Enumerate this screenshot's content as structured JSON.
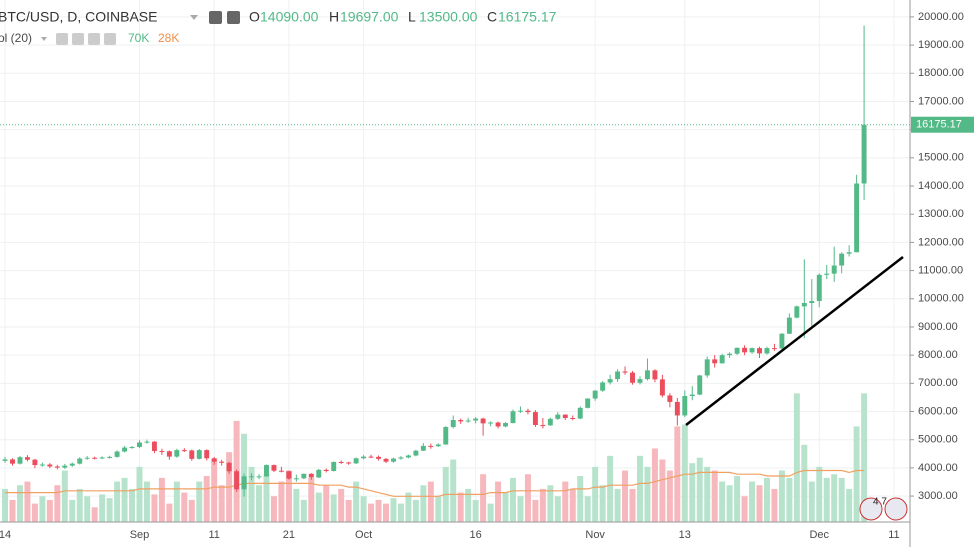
{
  "header": {
    "title": "BTC/USD, D, COINBASE",
    "ohlc": [
      {
        "key": "O",
        "value": "14090.00"
      },
      {
        "key": "H",
        "value": "19697.00"
      },
      {
        "key": "L",
        "value": "13500.00"
      },
      {
        "key": "C",
        "value": "16175.17"
      }
    ],
    "volume_label": "ol (20)",
    "volume_value": "70K",
    "volume_ma_value": "28K",
    "badge": "4 7"
  },
  "chart_data": {
    "type": "candlestick",
    "categories": [
      "14",
      null,
      null,
      null,
      null,
      null,
      null,
      null,
      null,
      null,
      null,
      null,
      null,
      null,
      null,
      null,
      null,
      null,
      "Sep",
      null,
      null,
      null,
      null,
      null,
      null,
      null,
      null,
      null,
      "11",
      null,
      null,
      null,
      null,
      null,
      null,
      null,
      null,
      null,
      "21",
      null,
      null,
      null,
      null,
      null,
      null,
      null,
      null,
      null,
      "Oct",
      null,
      null,
      null,
      null,
      null,
      null,
      null,
      null,
      null,
      null,
      null,
      null,
      null,
      null,
      "16",
      null,
      null,
      null,
      null,
      null,
      null,
      null,
      null,
      null,
      null,
      null,
      null,
      null,
      null,
      null,
      "Nov",
      null,
      null,
      null,
      null,
      null,
      null,
      null,
      null,
      null,
      null,
      null,
      "13",
      null,
      null,
      null,
      null,
      null,
      null,
      null,
      null,
      null,
      null,
      null,
      null,
      null,
      null,
      null,
      null,
      null,
      "Dec",
      null,
      null,
      null,
      null,
      null,
      null,
      null,
      null,
      null,
      "11"
    ],
    "open": [
      4250,
      4300,
      4150,
      4380,
      4290,
      4100,
      4120,
      4050,
      4010,
      4080,
      4150,
      4330,
      4360,
      4340,
      4370,
      4390,
      4580,
      4720,
      4740,
      4900,
      4930,
      4600,
      4590,
      4400,
      4630,
      4620,
      4320,
      4630,
      4340,
      4220,
      4180,
      3880,
      3240,
      3700,
      3700,
      3700,
      4100,
      3900,
      3880,
      3620,
      3630,
      3790,
      3660,
      3930,
      3890,
      4210,
      4190,
      4160,
      4340,
      4400,
      4390,
      4320,
      4220,
      4330,
      4370,
      4440,
      4610,
      4780,
      4770,
      4830,
      5450,
      5700,
      5650,
      5680,
      5750,
      5580,
      5610,
      5470,
      5590,
      6010,
      6030,
      5980,
      5520,
      5510,
      5740,
      5890,
      5770,
      5750,
      6130,
      6460,
      6740,
      7030,
      7150,
      7420,
      7380,
      7020,
      7150,
      7460,
      7140,
      6570,
      6340,
      5860,
      6550,
      6600,
      7280,
      7850,
      7710,
      8000,
      8050,
      8260,
      8100,
      8250,
      8060,
      8250,
      8240,
      8760,
      9330,
      9730,
      9850,
      9920,
      10850,
      10890,
      11180,
      11600,
      11650,
      14090,
      null,
      null,
      null,
      null
    ],
    "high": [
      4390,
      4340,
      4420,
      4450,
      4320,
      4190,
      4170,
      4110,
      4140,
      4190,
      4380,
      4420,
      4400,
      4410,
      4430,
      4620,
      4780,
      4780,
      4980,
      5000,
      4950,
      4680,
      4620,
      4680,
      4700,
      4650,
      4670,
      4660,
      4390,
      4290,
      4220,
      3950,
      3800,
      3810,
      3780,
      4120,
      4120,
      4040,
      3900,
      3760,
      3800,
      3810,
      3960,
      3980,
      4230,
      4260,
      4220,
      4370,
      4450,
      4470,
      4440,
      4350,
      4360,
      4420,
      4470,
      4640,
      4880,
      4860,
      4870,
      5480,
      5860,
      5750,
      5780,
      5800,
      5780,
      5650,
      5640,
      5630,
      6070,
      6180,
      6100,
      6050,
      5770,
      5780,
      5980,
      5900,
      5860,
      6180,
      6470,
      6760,
      7080,
      7300,
      7500,
      7600,
      7440,
      7250,
      7880,
      7500,
      7300,
      6650,
      6480,
      6750,
      6900,
      7300,
      7950,
      8000,
      8050,
      8100,
      8270,
      8350,
      8270,
      8300,
      8300,
      8400,
      8780,
      9480,
      9760,
      11400,
      10700,
      10900,
      11200,
      11850,
      11650,
      11900,
      14400,
      19697,
      null,
      null,
      null,
      null
    ],
    "low": [
      4180,
      4080,
      4120,
      4230,
      3990,
      4040,
      3990,
      3950,
      3960,
      4040,
      4120,
      4290,
      4300,
      4310,
      4330,
      4360,
      4550,
      4680,
      4700,
      4860,
      4520,
      4460,
      4290,
      4360,
      4560,
      4250,
      4300,
      4260,
      4110,
      4080,
      3790,
      3150,
      2980,
      3560,
      3600,
      3680,
      3850,
      3840,
      3580,
      3510,
      3600,
      3580,
      3640,
      3840,
      3870,
      4140,
      4110,
      4140,
      4300,
      4350,
      4260,
      4170,
      4180,
      4290,
      4340,
      4410,
      4600,
      4680,
      4740,
      4820,
      5400,
      5560,
      5600,
      5580,
      5140,
      5480,
      5400,
      5440,
      5580,
      5950,
      5900,
      5450,
      5400,
      5490,
      5700,
      5700,
      5690,
      5730,
      6110,
      6380,
      6700,
      6960,
      7050,
      7300,
      6950,
      6960,
      7100,
      7040,
      6500,
      6150,
      5500,
      5800,
      6400,
      6580,
      7200,
      7560,
      7700,
      7900,
      8000,
      8000,
      8050,
      7900,
      8020,
      8150,
      8200,
      8750,
      9300,
      8600,
      9000,
      9700,
      10700,
      10600,
      10900,
      11500,
      11650,
      13500,
      null,
      null,
      null,
      null
    ],
    "close": [
      4300,
      4150,
      4380,
      4290,
      4100,
      4120,
      4050,
      4010,
      4080,
      4150,
      4330,
      4360,
      4340,
      4370,
      4390,
      4580,
      4720,
      4740,
      4900,
      4930,
      4600,
      4590,
      4400,
      4630,
      4620,
      4320,
      4630,
      4340,
      4220,
      4180,
      3880,
      3240,
      3700,
      3700,
      3700,
      4100,
      3900,
      3880,
      3620,
      3630,
      3790,
      3660,
      3930,
      3890,
      4210,
      4190,
      4160,
      4340,
      4400,
      4390,
      4320,
      4220,
      4330,
      4370,
      4440,
      4610,
      4780,
      4770,
      4830,
      5450,
      5700,
      5650,
      5680,
      5750,
      5580,
      5610,
      5470,
      5590,
      6010,
      6030,
      5980,
      5520,
      5510,
      5740,
      5890,
      5770,
      5750,
      6130,
      6460,
      6740,
      7030,
      7150,
      7420,
      7380,
      7020,
      7150,
      7460,
      7140,
      6570,
      6340,
      5860,
      6550,
      6600,
      7280,
      7850,
      7710,
      8000,
      8050,
      8260,
      8100,
      8250,
      8060,
      8250,
      8240,
      8760,
      9330,
      9730,
      9850,
      9920,
      10850,
      10890,
      11180,
      11600,
      11650,
      14090,
      16175,
      null,
      null,
      null,
      null
    ],
    "volume": [
      18,
      12,
      20,
      22,
      10,
      14,
      12,
      20,
      28,
      12,
      18,
      14,
      8,
      15,
      13,
      22,
      24,
      18,
      30,
      22,
      15,
      24,
      10,
      22,
      16,
      12,
      22,
      25,
      34,
      20,
      38,
      55,
      48,
      30,
      20,
      26,
      14,
      22,
      28,
      18,
      12,
      24,
      16,
      20,
      15,
      18,
      12,
      22,
      14,
      10,
      12,
      10,
      13,
      10,
      16,
      12,
      20,
      22,
      14,
      30,
      34,
      16,
      18,
      12,
      26,
      10,
      22,
      16,
      24,
      14,
      26,
      12,
      18,
      20,
      14,
      22,
      18,
      25,
      14,
      30,
      20,
      36,
      18,
      28,
      18,
      36,
      30,
      40,
      34,
      28,
      52,
      53,
      32,
      35,
      30,
      28,
      22,
      20,
      25,
      14,
      22,
      20,
      24,
      18,
      28,
      24,
      70,
      42,
      22,
      30,
      24,
      26,
      24,
      18,
      52,
      70,
      null,
      null,
      null,
      null
    ],
    "volume_ma": [
      16,
      16,
      16,
      16,
      16,
      16,
      16,
      16,
      17,
      17,
      17,
      17,
      17,
      17,
      17,
      17,
      17,
      17,
      18,
      18,
      18,
      18,
      18,
      18,
      18,
      18,
      18,
      18,
      19,
      19,
      19,
      20,
      21,
      21,
      21,
      21,
      21,
      21,
      21,
      21,
      21,
      21,
      20,
      20,
      20,
      20,
      19,
      19,
      18,
      17,
      16,
      15,
      14,
      14,
      14,
      14,
      14,
      14,
      14,
      15,
      15,
      15,
      15,
      15,
      15,
      16,
      16,
      16,
      17,
      17,
      17,
      17,
      17,
      17,
      17,
      17,
      18,
      18,
      18,
      19,
      19,
      20,
      20,
      20,
      20,
      21,
      21,
      22,
      23,
      24,
      25,
      26,
      26,
      27,
      27,
      27,
      27,
      27,
      26,
      26,
      26,
      26,
      25,
      25,
      25,
      25,
      27,
      28,
      28,
      28,
      28,
      28,
      28,
      27,
      28,
      28,
      null,
      null,
      null,
      null
    ],
    "ylim": [
      2080,
      20600
    ],
    "volume_lim": [
      0,
      284
    ],
    "yticks": [
      {
        "value": 3000,
        "label": "3000.00"
      },
      {
        "value": 4000,
        "label": "4000.00"
      },
      {
        "value": 5000,
        "label": "5000.00"
      },
      {
        "value": 6000,
        "label": "6000.00"
      },
      {
        "value": 7000,
        "label": "7000.00"
      },
      {
        "value": 8000,
        "label": "8000.00"
      },
      {
        "value": 9000,
        "label": "9000.00"
      },
      {
        "value": 10000,
        "label": "10000.00"
      },
      {
        "value": 11000,
        "label": "11000.00"
      },
      {
        "value": 12000,
        "label": "12000.00"
      },
      {
        "value": 13000,
        "label": "13000.00"
      },
      {
        "value": 14000,
        "label": "14000.00"
      },
      {
        "value": 15000,
        "label": "15000.00"
      },
      {
        "value": 16000,
        "label": "16000.00"
      },
      {
        "value": 17000,
        "label": "17000.00"
      },
      {
        "value": 18000,
        "label": "18000.00"
      },
      {
        "value": 19000,
        "label": "19000.00"
      },
      {
        "value": 20000,
        "label": "20000.00"
      }
    ],
    "last_price": {
      "value": 16175.17,
      "label": "16175.17"
    },
    "grid": true,
    "up_color": "#53b987",
    "down_color": "#eb4d5c",
    "volume_up_color": "#b7e3cd",
    "volume_down_color": "#f6b7bd",
    "ma_color": "#f0a060"
  }
}
